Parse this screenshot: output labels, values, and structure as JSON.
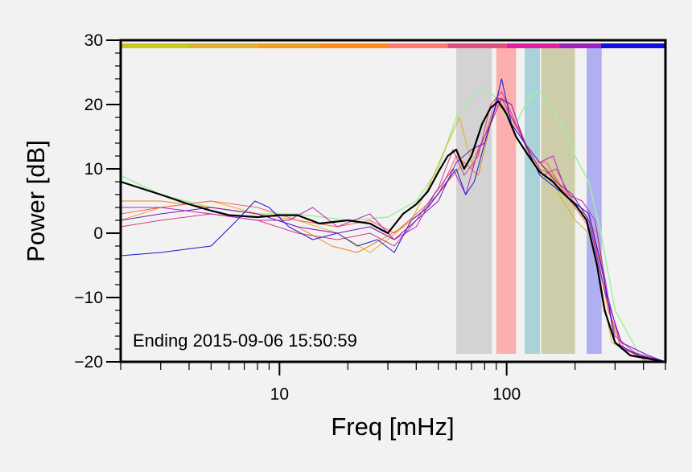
{
  "chart_data": {
    "type": "line",
    "xlabel": "Freq [mHz]",
    "ylabel": "Power [dB]",
    "x_scale": "log",
    "xlim": [
      2,
      500
    ],
    "ylim": [
      -20,
      30
    ],
    "y_ticks": [
      30,
      20,
      10,
      0,
      -10,
      -20
    ],
    "y_tick_labels": [
      "30",
      "20",
      "10",
      "0",
      "−10",
      "−20"
    ],
    "x_ticks": [
      10,
      100
    ],
    "x_tick_labels": [
      "10",
      "100"
    ],
    "annotation": "Ending 2015-09-06 15:50:59",
    "top_band": [
      {
        "from": 2,
        "to": 4,
        "color": "#c8c81e"
      },
      {
        "from": 4,
        "to": 8,
        "color": "#e0b030"
      },
      {
        "from": 8,
        "to": 15,
        "color": "#f0a020"
      },
      {
        "from": 15,
        "to": 30,
        "color": "#ff8c1a"
      },
      {
        "from": 30,
        "to": 55,
        "color": "#ff7a6e"
      },
      {
        "from": 55,
        "to": 100,
        "color": "#e0507a"
      },
      {
        "from": 100,
        "to": 170,
        "color": "#e020a0"
      },
      {
        "from": 170,
        "to": 260,
        "color": "#a020c0"
      },
      {
        "from": 260,
        "to": 500,
        "color": "#1010e0"
      }
    ],
    "shaded_bands": [
      {
        "from": 60,
        "to": 86,
        "color": "#c8c8c8"
      },
      {
        "from": 90,
        "to": 110,
        "color": "#ff9898"
      },
      {
        "from": 120,
        "to": 140,
        "color": "#90c8d0"
      },
      {
        "from": 142,
        "to": 200,
        "color": "#c0c090"
      },
      {
        "from": 225,
        "to": 262,
        "color": "#9898f0"
      }
    ],
    "series": [
      {
        "color": "#a0f0a0",
        "width": 1.5,
        "x": [
          2,
          3,
          5,
          8,
          12,
          20,
          30,
          40,
          50,
          60,
          70,
          80,
          90,
          100,
          110,
          125,
          140,
          160,
          180,
          200,
          230,
          260,
          300,
          400,
          500
        ],
        "y": [
          9,
          6,
          4,
          3,
          3,
          2,
          2.5,
          5,
          10,
          18,
          21,
          22.5,
          21,
          18,
          17,
          21,
          22,
          19,
          16,
          12,
          8,
          0,
          -12,
          -20,
          -20
        ]
      },
      {
        "color": "#e0b020",
        "width": 1,
        "x": [
          2,
          3,
          5,
          8,
          12,
          18,
          25,
          30,
          38,
          45,
          55,
          62,
          70,
          80,
          90,
          100,
          110,
          130,
          150,
          170,
          200,
          230,
          260,
          290,
          330,
          400,
          500
        ],
        "y": [
          2,
          4,
          5,
          3,
          2,
          0,
          -3,
          -1,
          2,
          7,
          14,
          18,
          11,
          15,
          20,
          19,
          17,
          11,
          10,
          6,
          2,
          0,
          -8,
          -17,
          -18,
          -19,
          -20
        ]
      },
      {
        "color": "#f08020",
        "width": 1,
        "x": [
          2,
          3,
          5,
          8,
          12,
          17,
          22,
          28,
          35,
          45,
          55,
          65,
          75,
          85,
          95,
          105,
          120,
          140,
          160,
          190,
          220,
          250,
          280,
          320,
          400,
          500
        ],
        "y": [
          5,
          5,
          4,
          3,
          1,
          -2,
          -3,
          -1,
          1,
          4,
          8,
          11,
          9,
          17,
          21,
          20,
          14,
          10,
          9,
          5,
          3,
          0,
          -12,
          -18,
          -19,
          -20
        ]
      },
      {
        "color": "#ff6060",
        "width": 1,
        "x": [
          2,
          3,
          5,
          8,
          12,
          18,
          25,
          32,
          40,
          50,
          60,
          70,
          80,
          90,
          100,
          115,
          130,
          150,
          175,
          200,
          240,
          280,
          330,
          420,
          500
        ],
        "y": [
          3,
          4,
          5,
          4,
          2,
          1,
          2,
          0,
          3,
          6,
          12,
          10,
          15,
          21,
          19,
          16,
          11,
          11,
          7,
          4,
          0,
          -12,
          -18,
          -20,
          -20
        ]
      },
      {
        "color": "#d04080",
        "width": 1,
        "x": [
          2,
          3,
          5,
          8,
          12,
          18,
          25,
          32,
          40,
          50,
          58,
          65,
          75,
          85,
          95,
          110,
          125,
          145,
          165,
          195,
          230,
          260,
          300,
          380,
          500
        ],
        "y": [
          1,
          2,
          3,
          2,
          0,
          -1,
          0,
          -2,
          2,
          7,
          13,
          9,
          12,
          20,
          22,
          17,
          13,
          9,
          10,
          5,
          3,
          -5,
          -16,
          -19,
          -20
        ]
      },
      {
        "color": "#c020c0",
        "width": 1,
        "x": [
          2,
          3,
          5,
          8,
          11,
          14,
          18,
          25,
          32,
          40,
          48,
          58,
          66,
          75,
          85,
          95,
          105,
          120,
          140,
          160,
          185,
          215,
          245,
          280,
          320,
          400,
          500
        ],
        "y": [
          4,
          4,
          3,
          2,
          2,
          4,
          1,
          3,
          -1,
          1,
          6,
          10,
          6,
          13,
          17,
          21,
          18,
          14,
          11,
          12,
          6,
          5,
          2,
          -10,
          -18,
          -19,
          -20
        ]
      },
      {
        "color": "#8010c0",
        "width": 1,
        "x": [
          2,
          3,
          5,
          8,
          12,
          18,
          25,
          32,
          40,
          50,
          60,
          70,
          80,
          92,
          105,
          120,
          140,
          165,
          195,
          230,
          270,
          320,
          420,
          500
        ],
        "y": [
          2,
          3,
          4,
          3,
          1,
          0,
          1,
          -1,
          2,
          5,
          11,
          13,
          14,
          21,
          20,
          14,
          11,
          8,
          6,
          2,
          -9,
          -17,
          -19,
          -20
        ]
      },
      {
        "color": "#1818d0",
        "width": 1,
        "x": [
          2,
          3,
          5,
          6.5,
          7.8,
          9,
          11,
          14,
          18,
          22,
          27,
          32,
          38,
          45,
          52,
          60,
          66,
          72,
          80,
          88,
          95,
          105,
          120,
          140,
          165,
          195,
          230,
          265,
          300,
          380,
          500
        ],
        "y": [
          -3.5,
          -3,
          -2,
          2,
          5,
          4,
          1,
          -1,
          0,
          -2,
          -1,
          -3,
          2,
          4,
          7,
          10,
          6,
          8,
          14,
          19,
          24,
          17,
          14,
          9,
          7,
          5,
          3,
          -6,
          -17,
          -19,
          -20
        ]
      },
      {
        "color": "#000000",
        "width": 2.2,
        "x": [
          2,
          3,
          4,
          5,
          6,
          8,
          10,
          12,
          15,
          20,
          25,
          30,
          35,
          40,
          45,
          50,
          55,
          60,
          65,
          70,
          78,
          85,
          92,
          100,
          110,
          125,
          140,
          160,
          180,
          200,
          225,
          250,
          270,
          300,
          350,
          500
        ],
        "y": [
          8,
          6,
          4.5,
          3.5,
          2.8,
          2.5,
          2.8,
          2.8,
          1.5,
          2,
          1.5,
          0,
          3,
          4.5,
          6.5,
          9.5,
          12,
          13,
          10,
          12,
          17,
          19.5,
          20.5,
          18.5,
          15,
          12,
          9.5,
          8,
          6,
          4.5,
          2,
          -5,
          -12,
          -17,
          -19,
          -20
        ]
      }
    ]
  }
}
